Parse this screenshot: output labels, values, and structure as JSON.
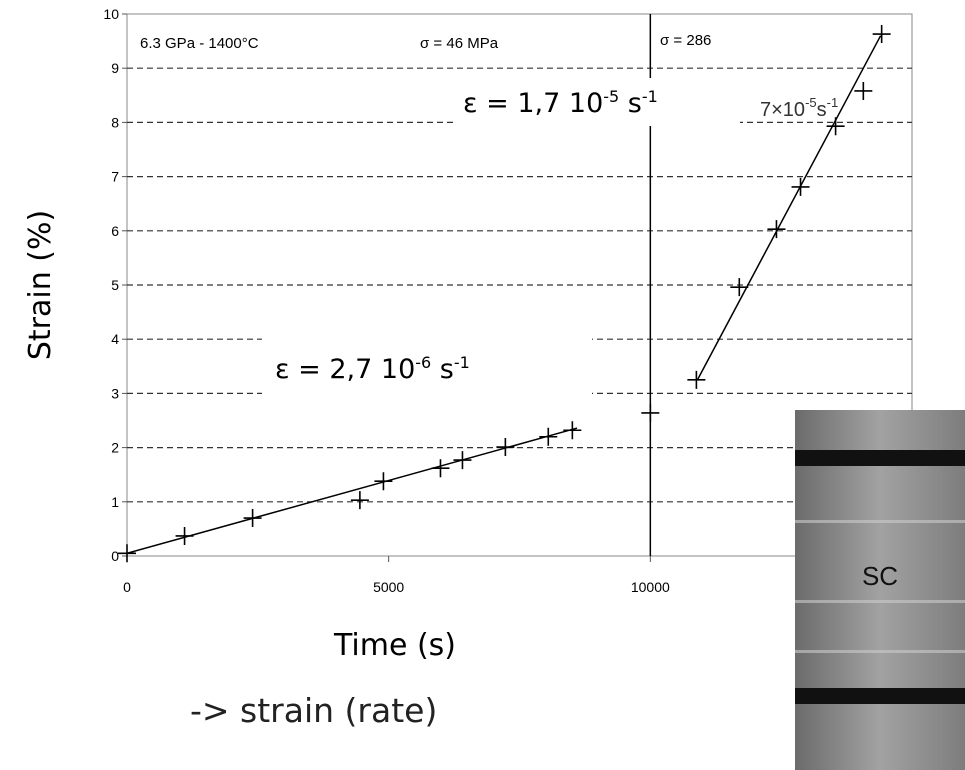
{
  "chart_data": {
    "type": "scatter",
    "x_label": "Time (s)",
    "y_label": "Strain (%)",
    "xlim": [
      0,
      15000
    ],
    "ylim": [
      0,
      10
    ],
    "xticks": [
      0,
      5000,
      10000
    ],
    "yticks": [
      0,
      1,
      2,
      3,
      4,
      5,
      6,
      7,
      8,
      9,
      10
    ],
    "grid": true,
    "series": [
      {
        "color": "#000000",
        "x": [
          0,
          1100,
          2400,
          4450,
          4900,
          5990,
          6410,
          7230,
          8050,
          8510,
          10000,
          10880,
          11700,
          12410,
          12870,
          13540,
          14070,
          14420
        ],
        "values": [
          0.05,
          0.37,
          0.7,
          1.03,
          1.38,
          1.62,
          1.77,
          2.01,
          2.2,
          2.32,
          2.64,
          3.25,
          4.96,
          6.03,
          6.81,
          7.93,
          8.58,
          9.63
        ]
      }
    ],
    "fits": [
      {
        "x": [
          0,
          8600
        ],
        "values": [
          0.05,
          2.36
        ]
      },
      {
        "x": [
          10900,
          14400
        ],
        "values": [
          3.25,
          9.6
        ]
      }
    ],
    "vlines": [
      10000
    ],
    "annotations": [
      {
        "text": "6.3 GPa - 1400°C"
      },
      {
        "text": "σ = 46 MPa"
      },
      {
        "text": "σ = 286"
      },
      {
        "base": "ε = 1,7 10",
        "exp": "-5",
        "unit": " s",
        "unit_exp": "-1"
      },
      {
        "base": "7×10",
        "exp": "-5",
        "unit": "s",
        "unit_exp": "-1"
      },
      {
        "base": "ε = 2,7 10",
        "exp": "-6",
        "unit": " s",
        "unit_exp": "-1"
      }
    ]
  },
  "caption": "-> strain (rate)",
  "image_label": "SC"
}
